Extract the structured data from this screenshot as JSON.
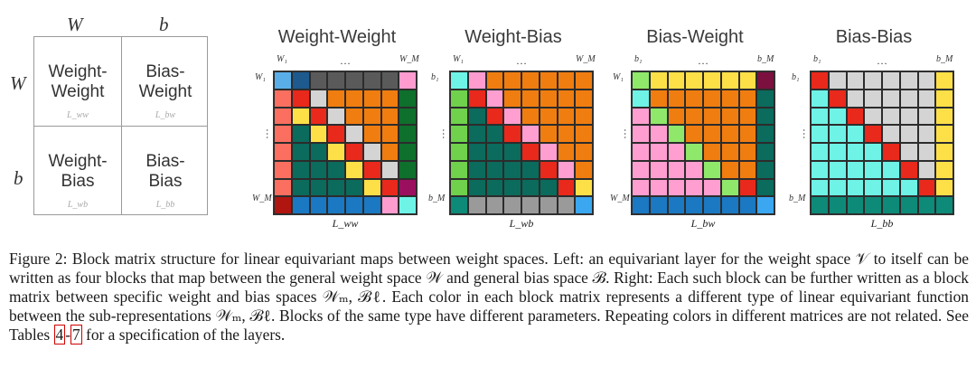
{
  "left_block": {
    "col_labels": [
      "W",
      "b"
    ],
    "row_labels": [
      "W",
      "b"
    ],
    "cells": [
      {
        "name": "Weight-\nWeight",
        "sub": "L_ww"
      },
      {
        "name": "Bias-\nWeight",
        "sub": "L_bw"
      },
      {
        "name": "Weight-\nBias",
        "sub": "L_wb"
      },
      {
        "name": "Bias-\nBias",
        "sub": "L_bb"
      }
    ]
  },
  "colors": {
    "blue": "#5aaee8",
    "navy": "#1e5a8e",
    "gray": "#5a5a5a",
    "light_gray": "#d4d4d4",
    "pink": "#ff9ccf",
    "red": "#e8291b",
    "orange": "#f07d10",
    "teal": "#0b6b5c",
    "green": "#0f6f2c",
    "salmon": "#fa6f60",
    "yellow": "#fde048",
    "purple": "#9b0f5f",
    "dark_red": "#b0150f",
    "steel_blue": "#1b78c2",
    "lime": "#6fd14c",
    "cyan": "#6ef3e6",
    "mid_gray": "#9a9a9a",
    "sky": "#3aa7f0",
    "light_pink": "#ff9ed0",
    "bright_green": "#8fe86a",
    "dark_teal": "#0e8a78",
    "maroon": "#7b0f3e"
  },
  "matrices": [
    {
      "title": "Weight-Weight",
      "top_first": "W₁",
      "top_last": "W_M",
      "side_first": "W₁",
      "side_last": "W_M",
      "xlabel": "L_ww",
      "grid": [
        [
          "blue",
          "navy",
          "gray",
          "gray",
          "gray",
          "gray",
          "gray",
          "pink"
        ],
        [
          "salmon",
          "red",
          "light_gray",
          "orange",
          "orange",
          "orange",
          "orange",
          "green"
        ],
        [
          "salmon",
          "yellow",
          "red",
          "light_gray",
          "orange",
          "orange",
          "orange",
          "green"
        ],
        [
          "salmon",
          "teal",
          "yellow",
          "red",
          "light_gray",
          "orange",
          "orange",
          "green"
        ],
        [
          "salmon",
          "teal",
          "teal",
          "yellow",
          "red",
          "light_gray",
          "orange",
          "green"
        ],
        [
          "salmon",
          "teal",
          "teal",
          "teal",
          "yellow",
          "red",
          "light_gray",
          "green"
        ],
        [
          "salmon",
          "teal",
          "teal",
          "teal",
          "teal",
          "yellow",
          "red",
          "purple"
        ],
        [
          "dark_red",
          "steel_blue",
          "steel_blue",
          "steel_blue",
          "steel_blue",
          "steel_blue",
          "pink",
          "cyan"
        ]
      ]
    },
    {
      "title": "Weight-Bias",
      "top_first": "W₁",
      "top_last": "W_M",
      "side_first": "b₁",
      "side_last": "b_M",
      "xlabel": "L_wb",
      "grid": [
        [
          "cyan",
          "pink",
          "orange",
          "orange",
          "orange",
          "orange",
          "orange",
          "orange"
        ],
        [
          "lime",
          "red",
          "light_pink",
          "orange",
          "orange",
          "orange",
          "orange",
          "orange"
        ],
        [
          "lime",
          "teal",
          "red",
          "light_pink",
          "orange",
          "orange",
          "orange",
          "orange"
        ],
        [
          "lime",
          "teal",
          "teal",
          "red",
          "light_pink",
          "orange",
          "orange",
          "orange"
        ],
        [
          "lime",
          "teal",
          "teal",
          "teal",
          "red",
          "light_pink",
          "orange",
          "orange"
        ],
        [
          "lime",
          "teal",
          "teal",
          "teal",
          "teal",
          "red",
          "light_pink",
          "orange"
        ],
        [
          "lime",
          "teal",
          "teal",
          "teal",
          "teal",
          "teal",
          "red",
          "yellow"
        ],
        [
          "dark_teal",
          "mid_gray",
          "mid_gray",
          "mid_gray",
          "mid_gray",
          "mid_gray",
          "mid_gray",
          "sky"
        ]
      ]
    },
    {
      "title": "Bias-Weight",
      "top_first": "b₁",
      "top_last": "b_M",
      "side_first": "W₁",
      "side_last": "W_M",
      "xlabel": "L_bw",
      "grid": [
        [
          "bright_green",
          "yellow",
          "yellow",
          "yellow",
          "yellow",
          "yellow",
          "yellow",
          "maroon"
        ],
        [
          "cyan",
          "orange",
          "orange",
          "orange",
          "orange",
          "orange",
          "orange",
          "teal"
        ],
        [
          "light_pink",
          "bright_green",
          "orange",
          "orange",
          "orange",
          "orange",
          "orange",
          "teal"
        ],
        [
          "light_pink",
          "light_pink",
          "bright_green",
          "orange",
          "orange",
          "orange",
          "orange",
          "teal"
        ],
        [
          "light_pink",
          "light_pink",
          "light_pink",
          "bright_green",
          "orange",
          "orange",
          "orange",
          "teal"
        ],
        [
          "light_pink",
          "light_pink",
          "light_pink",
          "light_pink",
          "bright_green",
          "orange",
          "orange",
          "teal"
        ],
        [
          "light_pink",
          "light_pink",
          "light_pink",
          "light_pink",
          "light_pink",
          "bright_green",
          "red",
          "teal"
        ],
        [
          "steel_blue",
          "steel_blue",
          "steel_blue",
          "steel_blue",
          "steel_blue",
          "steel_blue",
          "steel_blue",
          "sky"
        ]
      ]
    },
    {
      "title": "Bias-Bias",
      "top_first": "b₁",
      "top_last": "b_M",
      "side_first": "b₁",
      "side_last": "b_M",
      "xlabel": "L_bb",
      "grid": [
        [
          "red",
          "light_gray",
          "light_gray",
          "light_gray",
          "light_gray",
          "light_gray",
          "light_gray",
          "yellow"
        ],
        [
          "cyan",
          "red",
          "light_gray",
          "light_gray",
          "light_gray",
          "light_gray",
          "light_gray",
          "yellow"
        ],
        [
          "cyan",
          "cyan",
          "red",
          "light_gray",
          "light_gray",
          "light_gray",
          "light_gray",
          "yellow"
        ],
        [
          "cyan",
          "cyan",
          "cyan",
          "red",
          "light_gray",
          "light_gray",
          "light_gray",
          "yellow"
        ],
        [
          "cyan",
          "cyan",
          "cyan",
          "cyan",
          "red",
          "light_gray",
          "light_gray",
          "yellow"
        ],
        [
          "cyan",
          "cyan",
          "cyan",
          "cyan",
          "cyan",
          "red",
          "light_gray",
          "yellow"
        ],
        [
          "cyan",
          "cyan",
          "cyan",
          "cyan",
          "cyan",
          "cyan",
          "red",
          "yellow"
        ],
        [
          "dark_teal",
          "dark_teal",
          "dark_teal",
          "dark_teal",
          "dark_teal",
          "dark_teal",
          "dark_teal",
          "dark_teal"
        ]
      ]
    }
  ],
  "caption": {
    "part1": "Figure 2: Block matrix structure for linear equivariant maps between weight spaces. Left: an equivariant layer for the weight space 𝒱 to itself can be written as four blocks that map between the general weight space 𝒲 and general bias space ℬ. Right: Each such block can be further written as a block matrix between specific weight and bias spaces 𝒲ₘ, ℬℓ. Each color in each block matrix represents a different type of linear equivariant function between the sub-representations 𝒲ₘ, ℬℓ. Blocks of the same type have different parameters. Repeating colors in different matrices are not related. See Tables ",
    "ref1": "4",
    "sep": "-",
    "ref2": "7",
    "part2": " for a specification of the layers."
  }
}
